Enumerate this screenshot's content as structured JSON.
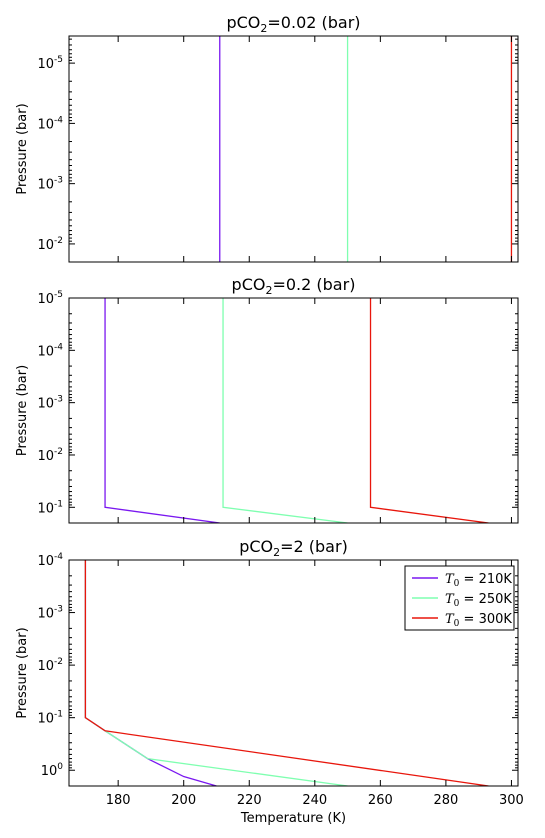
{
  "chart_data": [
    {
      "type": "line",
      "title_prefix": "pCO",
      "title_sub": "2",
      "title_suffix": "=0.02 (bar)",
      "xlabel": "",
      "ylabel": "Pressure (bar)",
      "xlim": [
        165,
        302
      ],
      "ylim_log10": [
        -5.45,
        -1.7
      ],
      "y_inverted": true,
      "y_ticks": [
        {
          "base": "10",
          "exp": "-5",
          "log": -5
        },
        {
          "base": "10",
          "exp": "-4",
          "log": -4
        },
        {
          "base": "10",
          "exp": "-3",
          "log": -3
        },
        {
          "base": "10",
          "exp": "-2",
          "log": -2
        }
      ],
      "x_ticks": [
        180,
        200,
        220,
        240,
        260,
        280,
        300
      ],
      "show_x_tick_labels": false,
      "series": [
        {
          "color": "#7a18f0",
          "points": [
            [
              211,
              -5.45
            ],
            [
              211,
              -1.7
            ]
          ]
        },
        {
          "color": "#7fffb0",
          "points": [
            [
              250,
              -5.45
            ],
            [
              250,
              -1.7
            ]
          ]
        },
        {
          "color": "#e8160c",
          "points": [
            [
              300,
              -5.45
            ],
            [
              300,
              -1.7
            ]
          ]
        }
      ]
    },
    {
      "type": "line",
      "title_prefix": "pCO",
      "title_sub": "2",
      "title_suffix": "=0.2 (bar)",
      "xlabel": "",
      "ylabel": "Pressure (bar)",
      "xlim": [
        165,
        302
      ],
      "ylim_log10": [
        -5,
        -0.7
      ],
      "y_inverted": true,
      "y_ticks": [
        {
          "base": "10",
          "exp": "-5",
          "log": -5
        },
        {
          "base": "10",
          "exp": "-4",
          "log": -4
        },
        {
          "base": "10",
          "exp": "-3",
          "log": -3
        },
        {
          "base": "10",
          "exp": "-2",
          "log": -2
        },
        {
          "base": "10",
          "exp": "-1",
          "log": -1
        }
      ],
      "x_ticks": [
        180,
        200,
        220,
        240,
        260,
        280,
        300
      ],
      "show_x_tick_labels": false,
      "series": [
        {
          "color": "#7a18f0",
          "points": [
            [
              176,
              -5
            ],
            [
              176,
              -1
            ],
            [
              211,
              -0.7
            ]
          ]
        },
        {
          "color": "#7fffb0",
          "points": [
            [
              212,
              -5
            ],
            [
              212,
              -1
            ],
            [
              250,
              -0.7
            ]
          ]
        },
        {
          "color": "#e8160c",
          "points": [
            [
              257,
              -5
            ],
            [
              257,
              -1
            ],
            [
              293,
              -0.7
            ]
          ]
        }
      ]
    },
    {
      "type": "line",
      "title_prefix": "pCO",
      "title_sub": "2",
      "title_suffix": "=2 (bar)",
      "xlabel": "Temperature (K)",
      "ylabel": "Pressure (bar)",
      "xlim": [
        165,
        302
      ],
      "ylim_log10": [
        -4,
        0.3
      ],
      "y_inverted": true,
      "y_ticks": [
        {
          "base": "10",
          "exp": "-4",
          "log": -4
        },
        {
          "base": "10",
          "exp": "-3",
          "log": -3
        },
        {
          "base": "10",
          "exp": "-2",
          "log": -2
        },
        {
          "base": "10",
          "exp": "-1",
          "log": -1
        },
        {
          "base": "10",
          "exp": "0",
          "log": 0
        }
      ],
      "x_ticks": [
        180,
        200,
        220,
        240,
        260,
        280,
        300
      ],
      "show_x_tick_labels": true,
      "legend": {
        "position": "top-right",
        "entries": [
          {
            "color": "#7a18f0",
            "label_var": "T",
            "label_sub": "0",
            "label_rest": " = 210K"
          },
          {
            "color": "#7fffb0",
            "label_var": "T",
            "label_sub": "0",
            "label_rest": " = 250K"
          },
          {
            "color": "#e8160c",
            "label_var": "T",
            "label_sub": "0",
            "label_rest": " = 300K"
          }
        ]
      },
      "series": [
        {
          "color": "#7a18f0",
          "points": [
            [
              170,
              -4
            ],
            [
              170,
              -1
            ],
            [
              176,
              -0.75
            ],
            [
              189,
              -0.22
            ],
            [
              200,
              0.12
            ],
            [
              210,
              0.3
            ]
          ]
        },
        {
          "color": "#7fffb0",
          "points": [
            [
              170,
              -4
            ],
            [
              170,
              -1
            ],
            [
              176,
              -0.75
            ],
            [
              189,
              -0.22
            ],
            [
              250,
              0.3
            ]
          ]
        },
        {
          "color": "#e8160c",
          "points": [
            [
              170,
              -4
            ],
            [
              170,
              -1
            ],
            [
              176,
              -0.75
            ],
            [
              293,
              0.3
            ]
          ]
        }
      ]
    }
  ]
}
